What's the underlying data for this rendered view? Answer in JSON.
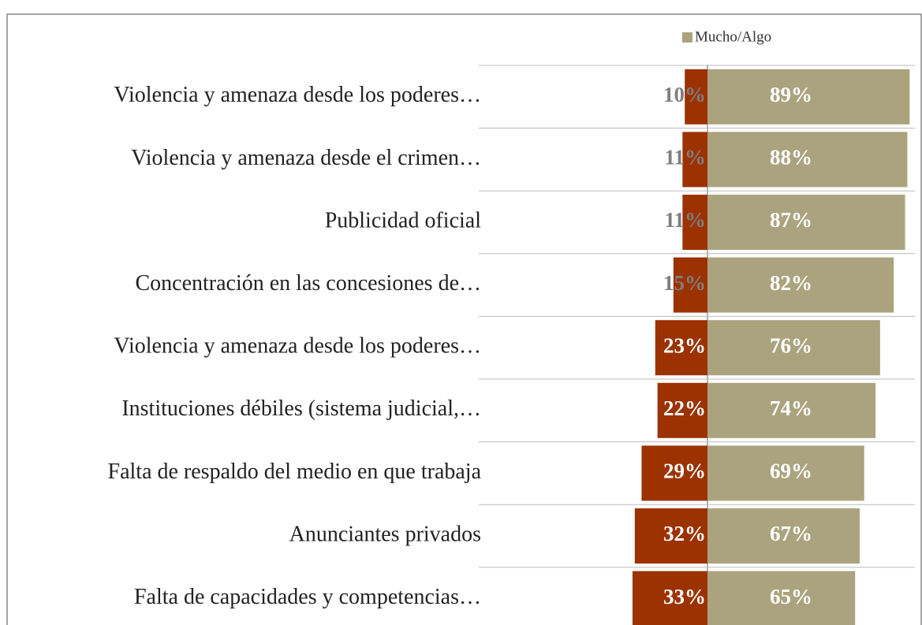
{
  "chart_data": {
    "type": "diverging_bar",
    "categories": [
      "Violencia y amenaza desde los poderes…",
      "Violencia y amenaza desde el crimen…",
      "Publicidad oficial",
      "Concentración en las concesiones de…",
      "Violencia y amenaza desde los poderes…",
      "Instituciones débiles (sistema judicial,…",
      "Falta de respaldo del medio en que trabaja",
      "Anunciantes privados",
      "Falta de capacidades y competencias…"
    ],
    "series": [
      {
        "color": "#9b3200",
        "values": [
          10,
          11,
          11,
          15,
          23,
          22,
          29,
          32,
          33
        ],
        "value_labels": [
          "10%",
          "11%",
          "11%",
          "15%",
          "23%",
          "22%",
          "29%",
          "32%",
          "33%"
        ]
      },
      {
        "name": "Mucho/Algo",
        "color": "#aba37e",
        "values": [
          89,
          88,
          87,
          82,
          76,
          74,
          69,
          67,
          65
        ],
        "value_labels": [
          "89%",
          "88%",
          "87%",
          "82%",
          "76%",
          "74%",
          "69%",
          "67%",
          "65%"
        ]
      }
    ]
  }
}
